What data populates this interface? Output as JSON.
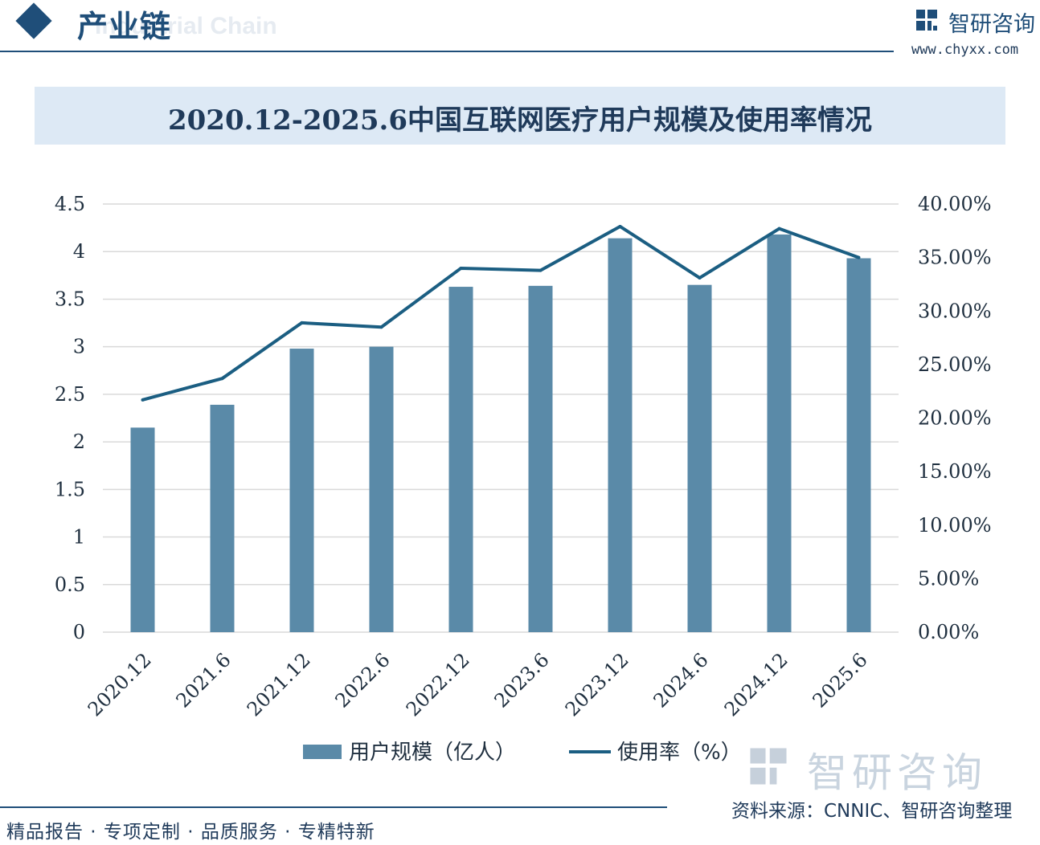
{
  "header": {
    "title": "产业链",
    "subtitle": "Industrial Chain"
  },
  "logo": {
    "name": "智研咨询",
    "url": "www.chyxx.com"
  },
  "watermark": {
    "text": "智研咨询"
  },
  "footer": {
    "tagline": "精品报告 · 专项定制 · 品质服务 · 专精特新",
    "source": "资料来源：CNNIC、智研咨询整理"
  },
  "colors": {
    "bar": "#5a8aa8",
    "line": "#1b5e82",
    "grid": "#d9d9d9",
    "brand": "#1f4e79"
  },
  "chart_data": {
    "type": "bar",
    "title": "2020.12-2025.6中国互联网医疗用户规模及使用率情况",
    "categories": [
      "2020.12",
      "2021.6",
      "2021.12",
      "2022.6",
      "2022.12",
      "2023.6",
      "2023.12",
      "2024.6",
      "2024.12",
      "2025.6"
    ],
    "series": [
      {
        "name": "用户规模（亿人）",
        "type": "bar",
        "axis": "left",
        "values": [
          2.15,
          2.39,
          2.98,
          3.0,
          3.63,
          3.64,
          4.14,
          3.65,
          4.18,
          3.93
        ]
      },
      {
        "name": "使用率（%）",
        "type": "line",
        "axis": "right",
        "values": [
          21.7,
          23.7,
          28.9,
          28.5,
          34.0,
          33.8,
          37.9,
          33.1,
          37.7,
          35.0
        ]
      }
    ],
    "ylim_left": [
      0,
      4.5
    ],
    "yticks_left": [
      "0",
      "0.5",
      "1",
      "1.5",
      "2",
      "2.5",
      "3",
      "3.5",
      "4",
      "4.5"
    ],
    "ylim_right": [
      0,
      40
    ],
    "yticks_right": [
      "0.00%",
      "5.00%",
      "10.00%",
      "15.00%",
      "20.00%",
      "25.00%",
      "30.00%",
      "35.00%",
      "40.00%"
    ],
    "grid": true,
    "legend_position": "bottom-center"
  }
}
